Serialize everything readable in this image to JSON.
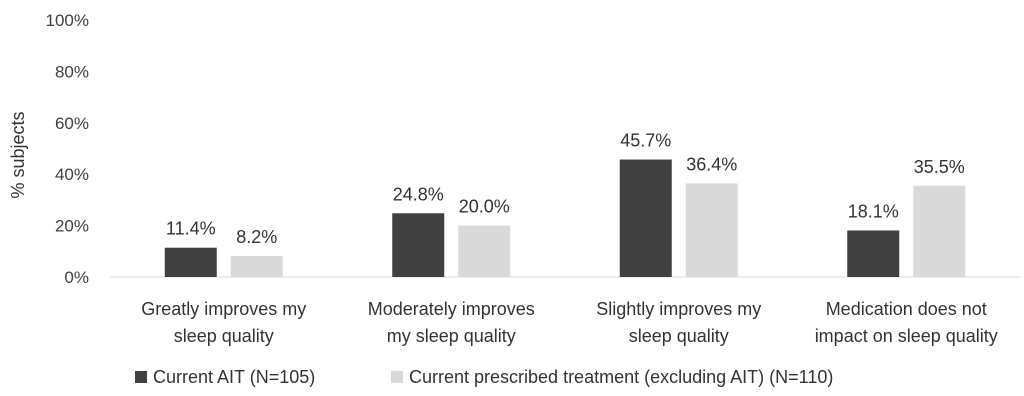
{
  "chart_data": {
    "type": "bar",
    "ylabel": "% subjects",
    "ylim": [
      0,
      100
    ],
    "yticks": [
      "0%",
      "20%",
      "40%",
      "60%",
      "80%",
      "100%"
    ],
    "ytick_values": [
      0,
      20,
      40,
      60,
      80,
      100
    ],
    "grid": false,
    "legend_position": "bottom",
    "categories": [
      [
        "Greatly improves my",
        "sleep quality"
      ],
      [
        "Moderately improves",
        "my sleep quality"
      ],
      [
        "Slightly improves my",
        "sleep quality"
      ],
      [
        "Medication  does not",
        "impact on sleep quality"
      ]
    ],
    "series": [
      {
        "name": "Current AIT (N=105)",
        "color": "#404040",
        "values": [
          11.4,
          24.8,
          45.7,
          18.1
        ],
        "labels": [
          "11.4%",
          "24.8%",
          "45.7%",
          "18.1%"
        ]
      },
      {
        "name": "Current prescribed treatment (excluding AIT) (N=110)",
        "color": "#d9d9d9",
        "values": [
          8.2,
          20.0,
          36.4,
          35.5
        ],
        "labels": [
          "8.2%",
          "20.0%",
          "36.4%",
          "35.5%"
        ]
      }
    ]
  }
}
